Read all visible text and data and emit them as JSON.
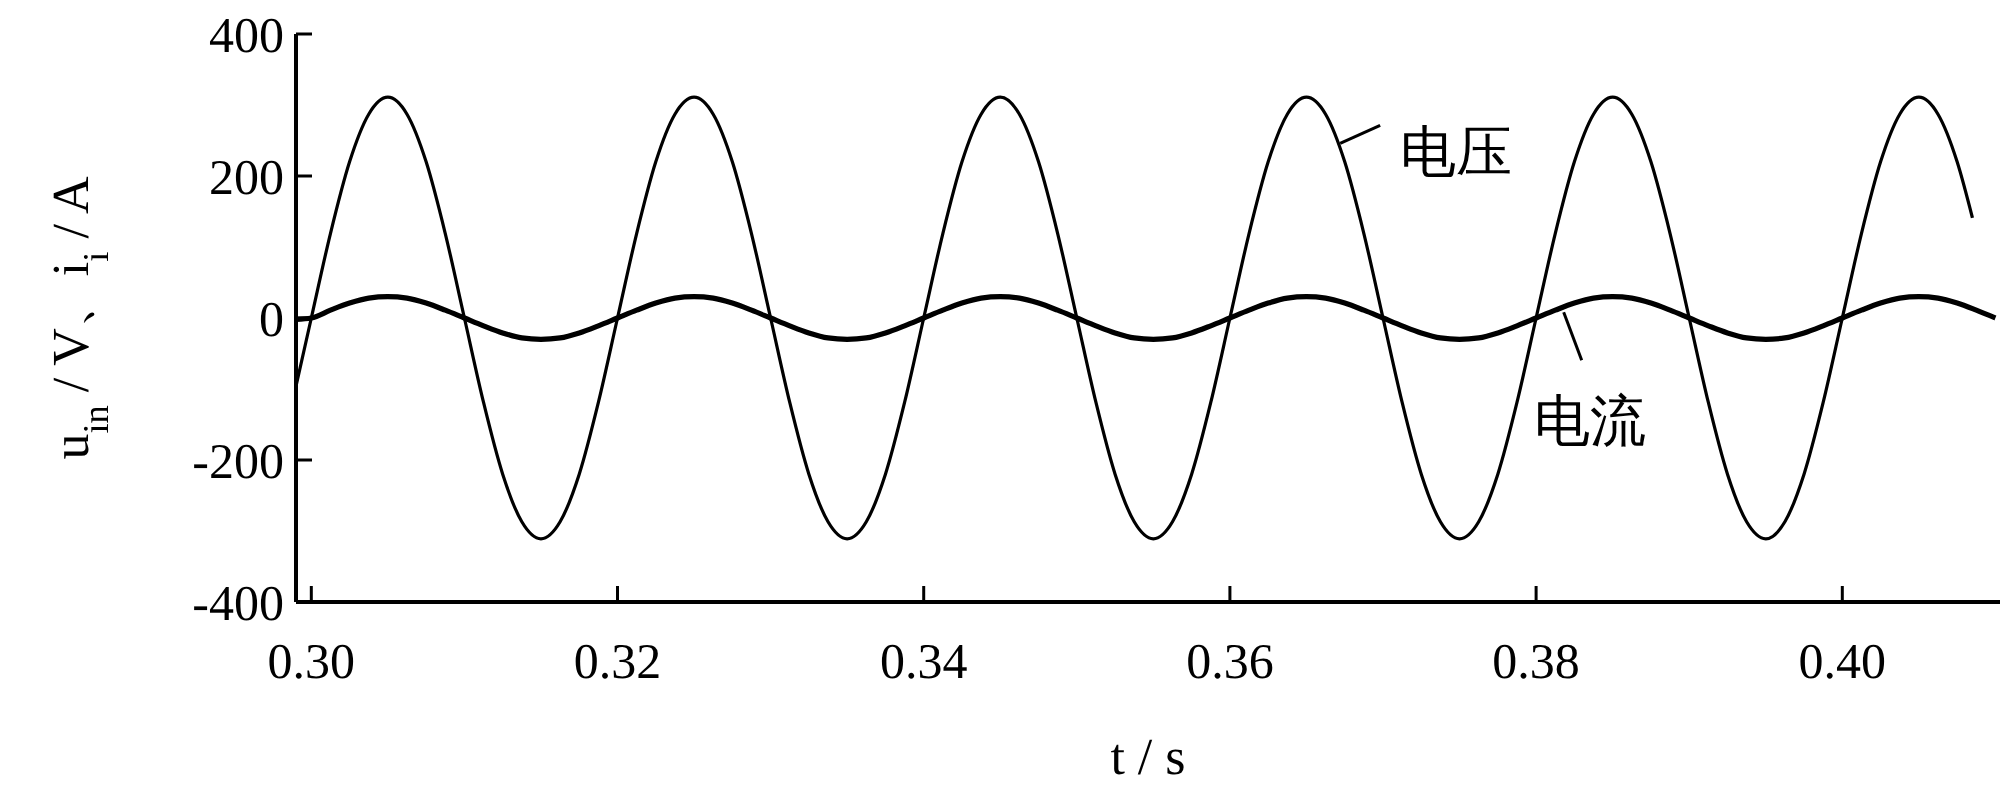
{
  "chart_data": {
    "type": "line",
    "xlabel": "t / s",
    "ylabel": "u$_{in}$ / V、i$_{i}$ / A",
    "xlim": [
      0.299,
      0.4103
    ],
    "ylim": [
      -400,
      400
    ],
    "xticks": [
      {
        "value": 0.3,
        "label": "0.30"
      },
      {
        "value": 0.32,
        "label": "0.32"
      },
      {
        "value": 0.34,
        "label": "0.34"
      },
      {
        "value": 0.36,
        "label": "0.36"
      },
      {
        "value": 0.38,
        "label": "0.38"
      },
      {
        "value": 0.4,
        "label": "0.40"
      }
    ],
    "yticks": [
      -400,
      -200,
      0,
      200,
      400
    ],
    "line_style": "solid",
    "series": [
      {
        "color": "#000000",
        "x": [
          0.299,
          0.3,
          0.30125,
          0.3025,
          0.30375,
          0.305,
          0.30625,
          0.3075,
          0.30875,
          0.31,
          0.31125,
          0.3125,
          0.31375,
          0.315,
          0.31625,
          0.3175,
          0.31875,
          0.32,
          0.32125,
          0.3225,
          0.32375,
          0.325,
          0.32625,
          0.3275,
          0.32875,
          0.33,
          0.33125,
          0.3325,
          0.33375,
          0.335,
          0.33625,
          0.3375,
          0.33875,
          0.34,
          0.34125,
          0.3425,
          0.34375,
          0.345,
          0.34625,
          0.3475,
          0.34875,
          0.35,
          0.35125,
          0.3525,
          0.35375,
          0.355,
          0.35625,
          0.3575,
          0.35875,
          0.36,
          0.36125,
          0.3625,
          0.36375,
          0.365,
          0.36625,
          0.3675,
          0.36875,
          0.37,
          0.37125,
          0.3725,
          0.37375,
          0.375,
          0.37625,
          0.3775,
          0.37875,
          0.38,
          0.38125,
          0.3825,
          0.38375,
          0.385,
          0.38625,
          0.3875,
          0.38875,
          0.39,
          0.39125,
          0.3925,
          0.39375,
          0.395,
          0.39625,
          0.3975,
          0.39875,
          0.4,
          0.40125,
          0.4025,
          0.40375,
          0.405,
          0.40625,
          0.4075,
          0.4085
        ],
        "values": [
          -96,
          0,
          119,
          220,
          287,
          311,
          287,
          220,
          119,
          0,
          -119,
          -220,
          -287,
          -311,
          -287,
          -220,
          -119,
          0,
          119,
          220,
          287,
          311,
          287,
          220,
          119,
          0,
          -119,
          -220,
          -287,
          -311,
          -287,
          -220,
          -119,
          0,
          119,
          220,
          287,
          311,
          287,
          220,
          119,
          0,
          -119,
          -220,
          -287,
          -311,
          -287,
          -220,
          -119,
          0,
          119,
          220,
          287,
          311,
          287,
          220,
          119,
          0,
          -119,
          -220,
          -287,
          -311,
          -287,
          -220,
          -119,
          0,
          119,
          220,
          287,
          311,
          287,
          220,
          119,
          0,
          -119,
          -220,
          -287,
          -311,
          -287,
          -220,
          -119,
          0,
          119,
          220,
          287,
          311,
          287,
          220,
          141
        ]
      },
      {
        "color": "#000000",
        "x": [
          0.299,
          0.3,
          0.30125,
          0.3025,
          0.30375,
          0.305,
          0.30625,
          0.3075,
          0.30875,
          0.31,
          0.31125,
          0.3125,
          0.31375,
          0.315,
          0.31625,
          0.3175,
          0.31875,
          0.32,
          0.32125,
          0.3225,
          0.32375,
          0.325,
          0.32625,
          0.3275,
          0.32875,
          0.33,
          0.33125,
          0.3325,
          0.33375,
          0.335,
          0.33625,
          0.3375,
          0.33875,
          0.34,
          0.34125,
          0.3425,
          0.34375,
          0.345,
          0.34625,
          0.3475,
          0.34875,
          0.35,
          0.35125,
          0.3525,
          0.35375,
          0.355,
          0.35625,
          0.3575,
          0.35875,
          0.36,
          0.36125,
          0.3625,
          0.36375,
          0.365,
          0.36625,
          0.3675,
          0.36875,
          0.37,
          0.37125,
          0.3725,
          0.37375,
          0.375,
          0.37625,
          0.3775,
          0.37875,
          0.38,
          0.38125,
          0.3825,
          0.38375,
          0.385,
          0.38625,
          0.3875,
          0.38875,
          0.39,
          0.39125,
          0.3925,
          0.39375,
          0.395,
          0.39625,
          0.3975,
          0.39875,
          0.4,
          0.40125,
          0.4025,
          0.40375,
          0.405,
          0.40625,
          0.4075,
          0.40875,
          0.41
        ],
        "values": [
          -2,
          0,
          11,
          21,
          28,
          30,
          28,
          21,
          11,
          0,
          -11,
          -21,
          -28,
          -30,
          -28,
          -21,
          -11,
          0,
          11,
          21,
          28,
          30,
          28,
          21,
          11,
          0,
          -11,
          -21,
          -28,
          -30,
          -28,
          -21,
          -11,
          0,
          11,
          21,
          28,
          30,
          28,
          21,
          11,
          0,
          -11,
          -21,
          -28,
          -30,
          -28,
          -21,
          -11,
          0,
          11,
          21,
          28,
          30,
          28,
          21,
          11,
          0,
          -11,
          -21,
          -28,
          -30,
          -28,
          -21,
          -11,
          0,
          11,
          21,
          28,
          30,
          28,
          21,
          11,
          0,
          -11,
          -21,
          -28,
          -30,
          -28,
          -21,
          -11,
          0,
          11,
          21,
          28,
          30,
          28,
          21,
          11,
          0
        ]
      }
    ],
    "annotations": [
      {
        "text": "电压",
        "x": 0.3672,
        "y": 246
      },
      {
        "text": "电流",
        "x": 0.3818,
        "y": 8
      }
    ]
  }
}
